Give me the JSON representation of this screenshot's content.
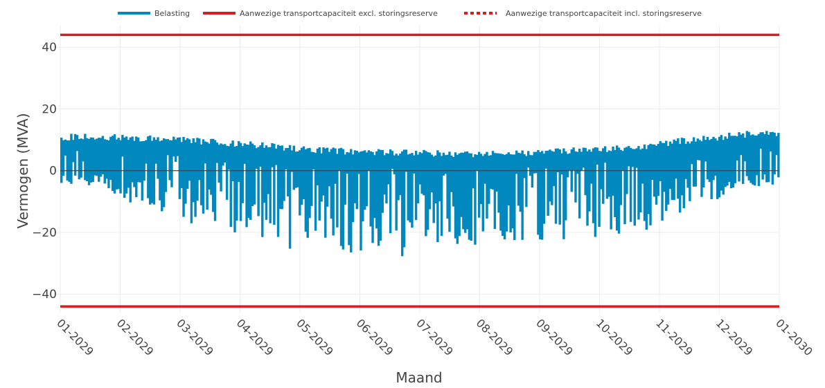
{
  "chart_data": {
    "type": "area",
    "title": "",
    "xlabel": "Maand",
    "ylabel": "Vermogen (MVA)",
    "ylim": [
      -46,
      47
    ],
    "yticks": [
      40,
      20,
      0,
      -20,
      -40
    ],
    "ytick_labels": [
      "40",
      "20",
      "0",
      "−20",
      "−40"
    ],
    "x_tick_labels": [
      "01-2029",
      "02-2029",
      "03-2029",
      "04-2029",
      "05-2029",
      "06-2029",
      "07-2029",
      "08-2029",
      "09-2029",
      "10-2029",
      "11-2029",
      "12-2029",
      "01-2030"
    ],
    "grid": true,
    "legend_position": "top-center",
    "series": [
      {
        "name": "Belasting",
        "color": "#0088bf",
        "style": "solid",
        "note_months": [
          "01-2029",
          "02-2029",
          "03-2029",
          "04-2029",
          "05-2029",
          "06-2029",
          "07-2029",
          "08-2029",
          "09-2029",
          "10-2029",
          "11-2029",
          "12-2029"
        ],
        "monthly_max": [
          12,
          11.5,
          10.5,
          9,
          7.5,
          7,
          6.5,
          6.5,
          7.5,
          8.5,
          11,
          13
        ],
        "monthly_min": [
          -5,
          -13,
          -19,
          -25,
          -26,
          -28,
          -27,
          -24,
          -25,
          -22,
          -13,
          -5
        ]
      },
      {
        "name": "Aanwezige transportcapaciteit excl. storingsreserve",
        "color": "#d62020",
        "style": "solid",
        "values": [
          44,
          -44
        ]
      },
      {
        "name": "Aanwezige transportcapaciteit incl. storingsreserve",
        "color": "#d62020",
        "style": "dotted",
        "values": [
          44,
          -44
        ]
      }
    ]
  }
}
